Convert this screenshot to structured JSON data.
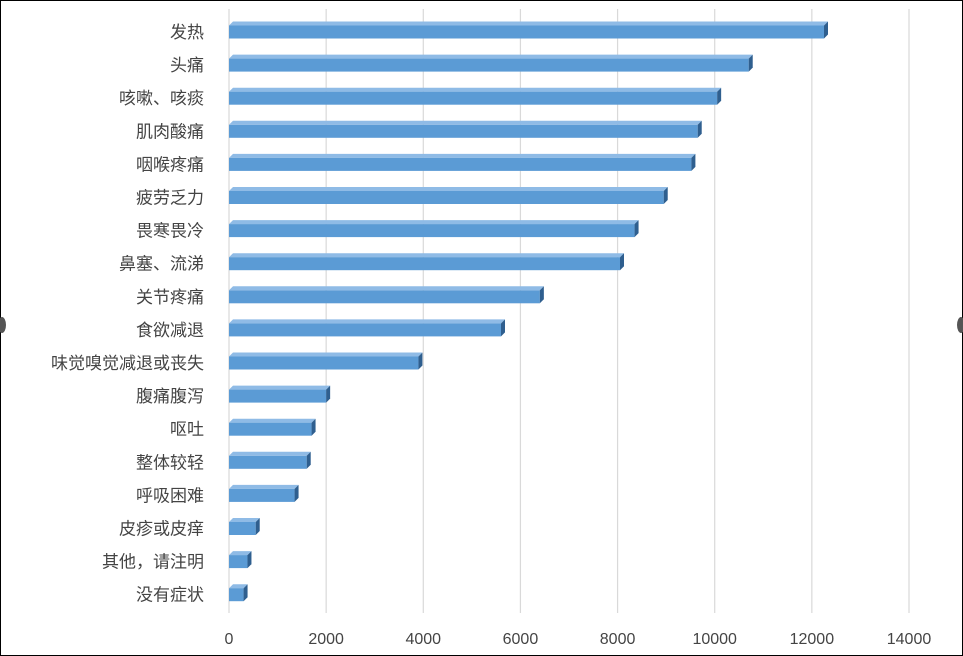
{
  "chart_data": {
    "type": "bar",
    "orientation": "horizontal",
    "categories": [
      "发热",
      "头痛",
      "咳嗽、咳痰",
      "肌肉酸痛",
      "咽喉疼痛",
      "疲劳乏力",
      "畏寒畏冷",
      "鼻塞、流涕",
      "关节疼痛",
      "食欲减退",
      "味觉嗅觉减退或丧失",
      "腹痛腹泻",
      "呕吐",
      "整体较轻",
      "呼吸困难",
      "皮疹或皮痒",
      "其他，请注明",
      "没有症状"
    ],
    "values": [
      12250,
      10700,
      10050,
      9650,
      9520,
      8950,
      8350,
      8050,
      6400,
      5600,
      3900,
      2000,
      1700,
      1600,
      1350,
      550,
      380,
      300
    ],
    "xlim": [
      0,
      14000
    ],
    "xticks": [
      0,
      2000,
      4000,
      6000,
      8000,
      10000,
      12000,
      14000
    ],
    "xtick_labels": [
      "0",
      "2000",
      "4000",
      "6000",
      "8000",
      "10000",
      "12000",
      "14000"
    ],
    "grid": "vertical",
    "legend": "none",
    "title": "",
    "xlabel": "",
    "ylabel": "",
    "colors": {
      "bar": "#5b9bd5",
      "bar_top": "#8fbbe6",
      "bar_side": "#2f5f8f",
      "grid": "#d9d9d9"
    }
  }
}
